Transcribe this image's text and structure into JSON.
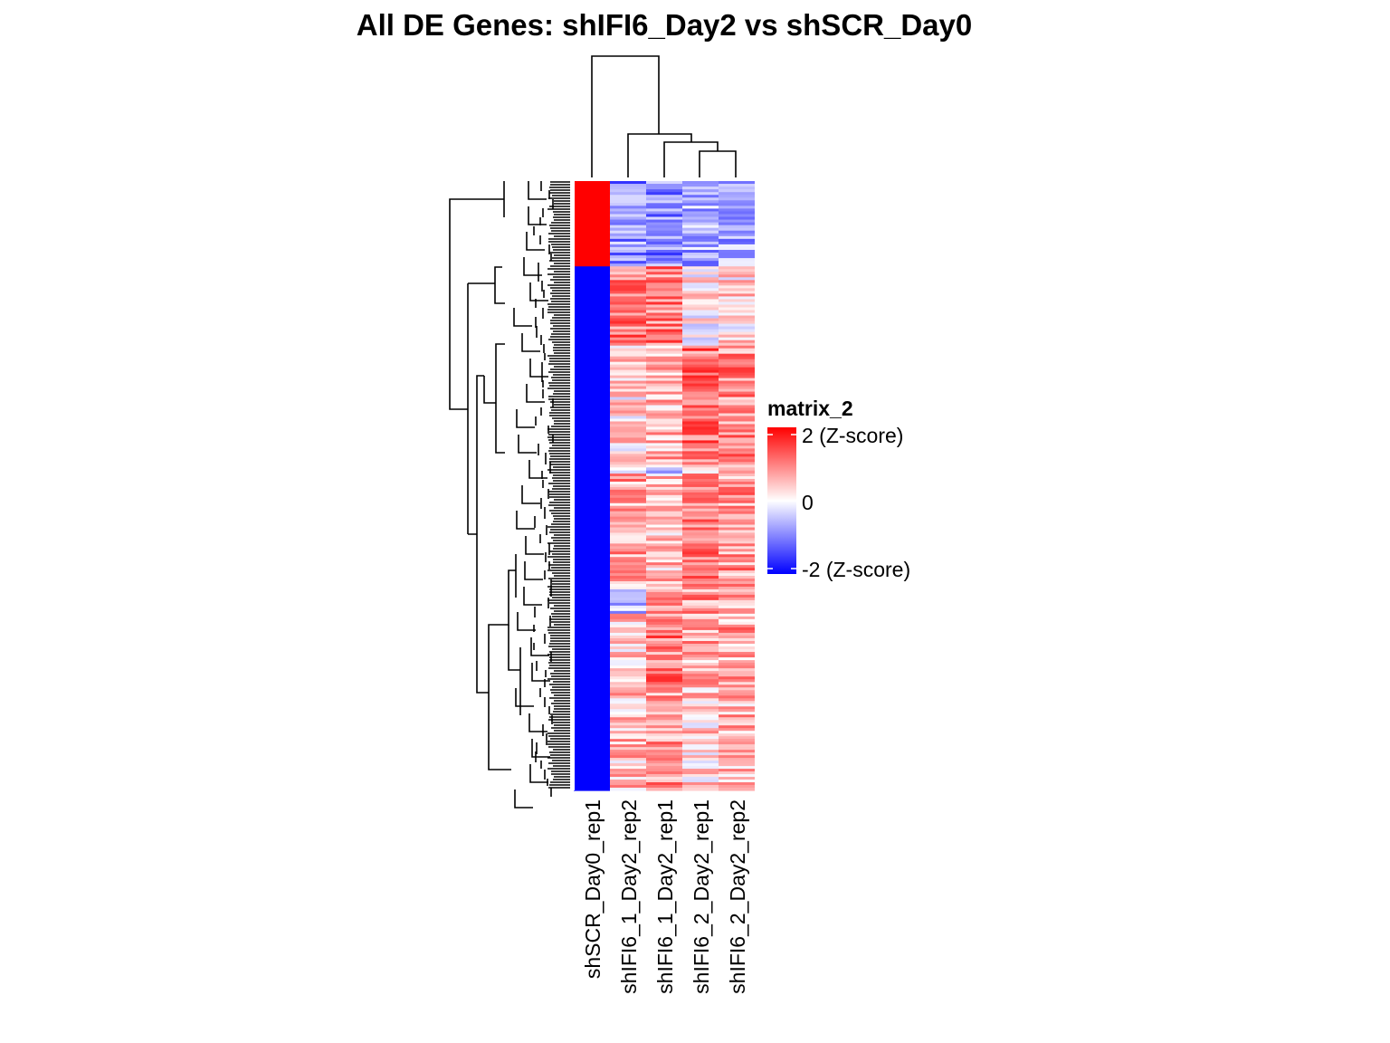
{
  "chart_data": {
    "type": "heatmap",
    "title": "All DE Genes: shIFI6_Day2  vs  shSCR_Day0",
    "columns": [
      "shSCR_Day0_rep1",
      "shIFI6_1_Day2_rep2",
      "shIFI6_1_Day2_rep1",
      "shIFI6_2_Day2_rep1",
      "shIFI6_2_Day2_rep2"
    ],
    "row_blocks": [
      {
        "fraction": 0.14,
        "values": [
          2.0,
          -0.9,
          -0.9,
          -0.6,
          -0.7
        ]
      },
      {
        "fraction": 0.13,
        "values": [
          -2.0,
          1.0,
          1.0,
          0.1,
          0.3
        ]
      },
      {
        "fraction": 0.2,
        "values": [
          -2.0,
          0.3,
          0.6,
          1.1,
          0.9
        ]
      },
      {
        "fraction": 0.01,
        "values": [
          -2.0,
          0.2,
          -0.3,
          0.6,
          0.4
        ]
      },
      {
        "fraction": 0.19,
        "values": [
          -2.0,
          0.7,
          0.5,
          0.9,
          0.8
        ]
      },
      {
        "fraction": 0.04,
        "values": [
          -2.0,
          -0.4,
          0.8,
          0.8,
          0.6
        ]
      },
      {
        "fraction": 0.13,
        "values": [
          -2.0,
          0.4,
          1.0,
          0.6,
          0.7
        ]
      },
      {
        "fraction": 0.16,
        "values": [
          -2.0,
          0.5,
          0.8,
          0.4,
          0.6
        ]
      }
    ],
    "color_scale": {
      "min": -2,
      "mid": 0,
      "max": 2,
      "low_color": "#0000ff",
      "mid_color": "#ffffff",
      "high_color": "#ff0000"
    },
    "legend": {
      "title": "matrix_2",
      "labels": [
        "2 (Z-score)",
        "0",
        "-2 (Z-score)"
      ],
      "placement": "right"
    }
  }
}
